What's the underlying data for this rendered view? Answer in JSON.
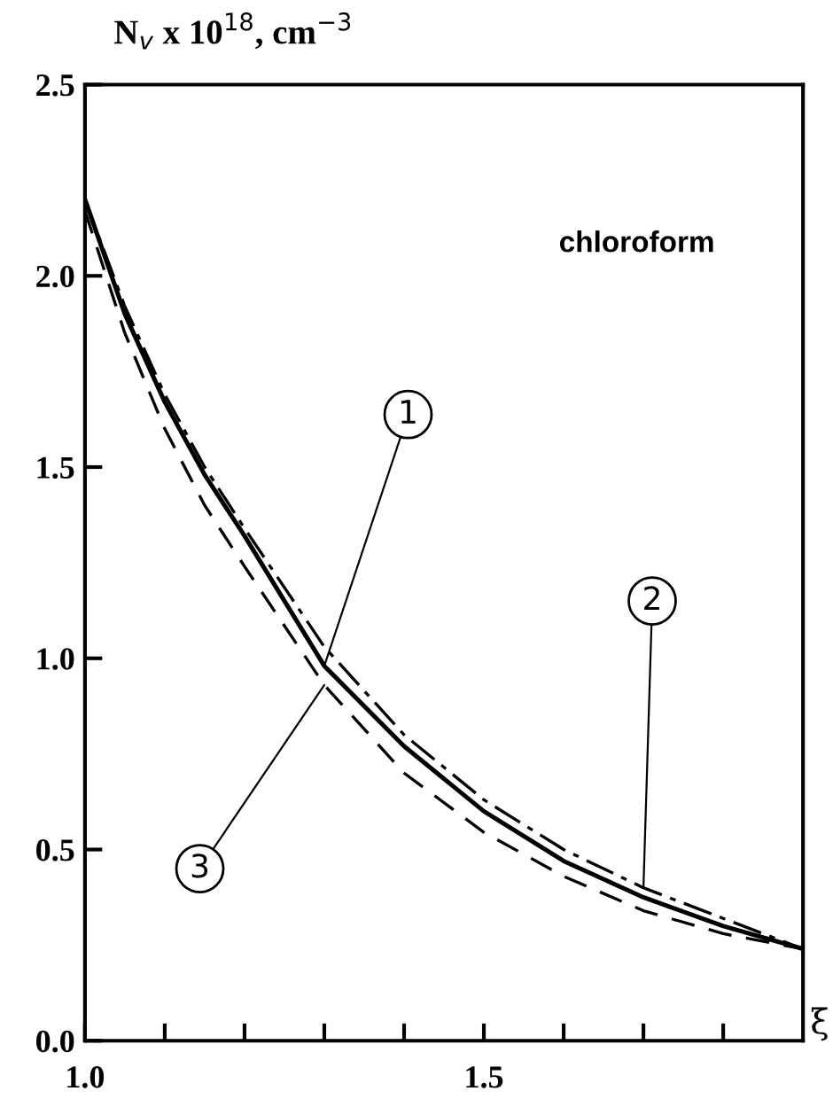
{
  "chart_data": {
    "type": "line",
    "ylabel": "N$_{v}$ x 10$^{18}$, cm$^{−3}$",
    "xlabel": "ξ",
    "annotations": [
      "chloroform"
    ],
    "x": [
      1.0,
      1.05,
      1.1,
      1.15,
      1.2,
      1.3,
      1.4,
      1.5,
      1.6,
      1.7,
      1.8,
      1.9
    ],
    "series": [
      {
        "name": "1",
        "color": "#000000",
        "line_style": "solid",
        "values": [
          2.2,
          1.9,
          1.67,
          1.48,
          1.32,
          0.98,
          0.77,
          0.6,
          0.47,
          0.375,
          0.3,
          0.24
        ]
      },
      {
        "name": "2",
        "color": "#000000",
        "line_style": "dashdot",
        "values": [
          2.2,
          1.92,
          1.69,
          1.5,
          1.34,
          1.03,
          0.8,
          0.63,
          0.5,
          0.4,
          0.32,
          0.24
        ]
      },
      {
        "name": "3",
        "color": "#000000",
        "line_style": "dashed",
        "values": [
          2.17,
          1.85,
          1.6,
          1.4,
          1.24,
          0.93,
          0.7,
          0.545,
          0.43,
          0.34,
          0.28,
          0.24
        ]
      }
    ],
    "xlim": [
      1.0,
      1.9
    ],
    "ylim": [
      0.0,
      2.5
    ],
    "xticks": [
      {
        "value": 1.0,
        "label": "1.0"
      },
      {
        "value": 1.1,
        "label": null
      },
      {
        "value": 1.2,
        "label": null
      },
      {
        "value": 1.3,
        "label": null
      },
      {
        "value": 1.4,
        "label": null
      },
      {
        "value": 1.5,
        "label": "1.5"
      },
      {
        "value": 1.6,
        "label": null
      },
      {
        "value": 1.7,
        "label": null
      },
      {
        "value": 1.8,
        "label": null
      }
    ],
    "yticks": [
      {
        "value": 0.0,
        "label": "0.0"
      },
      {
        "value": 0.5,
        "label": "0.5"
      },
      {
        "value": 1.0,
        "label": "1.0"
      },
      {
        "value": 1.5,
        "label": "1.5"
      },
      {
        "value": 2.0,
        "label": "2.0"
      },
      {
        "value": 2.5,
        "label": "2.5"
      }
    ],
    "grid": false,
    "legend": false
  }
}
